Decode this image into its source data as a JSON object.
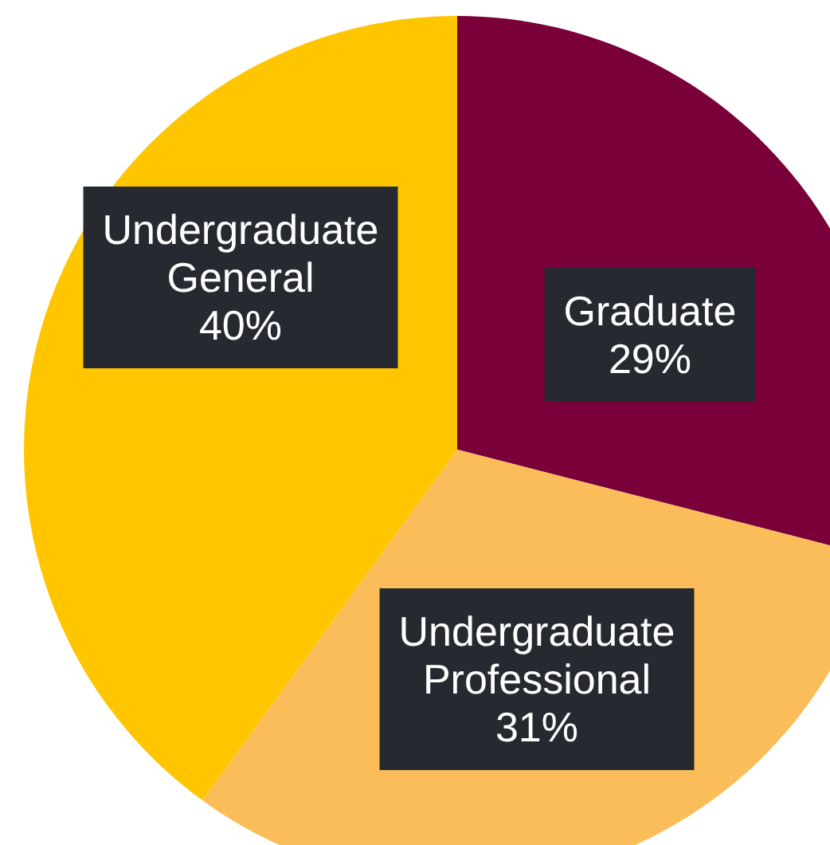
{
  "chart_data": {
    "type": "pie",
    "categories": [
      "Graduate",
      "Undergraduate Professional",
      "Undergraduate General"
    ],
    "values": [
      29,
      31,
      40
    ],
    "colors": [
      "#7a0039",
      "#fbbd5a",
      "#ffc600"
    ],
    "value_labels": [
      "29%",
      "31%",
      "40%"
    ]
  }
}
